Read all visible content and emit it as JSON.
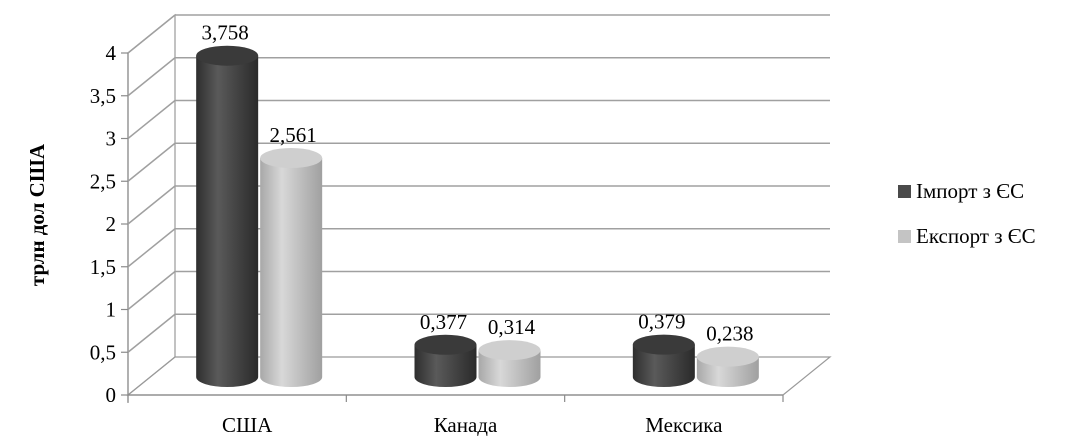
{
  "chart_data": {
    "type": "bar",
    "ylabel": "трлн дол США",
    "xlabel": "",
    "categories": [
      "США",
      "Канада",
      "Мексика"
    ],
    "ylim": [
      0,
      4
    ],
    "yticks": [
      "0",
      "0,5",
      "1",
      "1,5",
      "2",
      "2,5",
      "3",
      "3,5",
      "4"
    ],
    "grid": true,
    "legend_position": "right",
    "style": "3d-cylinder",
    "series": [
      {
        "name": "Імпорт з ЄС",
        "color": "#4a4a4a",
        "values": [
          3.758,
          0.377,
          0.379
        ],
        "labels": [
          "3,758",
          "0,377",
          "0,379"
        ]
      },
      {
        "name": "Експорт з ЄС",
        "color": "#bdbdbd",
        "values": [
          2.561,
          0.314,
          0.238
        ],
        "labels": [
          "2,561",
          "0,314",
          "0,238"
        ]
      }
    ]
  }
}
